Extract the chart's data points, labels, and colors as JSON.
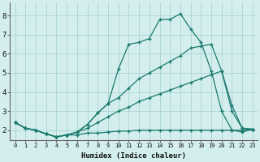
{
  "xlabel": "Humidex (Indice chaleur)",
  "bg_color": "#d4eeee",
  "grid_color": "#aad4d4",
  "line_color": "#1a7a6e",
  "xlim": [
    -0.5,
    23.5
  ],
  "ylim": [
    1.5,
    8.7
  ],
  "yticks": [
    2,
    3,
    4,
    5,
    6,
    7,
    8
  ],
  "xticks": [
    0,
    1,
    2,
    3,
    4,
    5,
    6,
    7,
    8,
    9,
    10,
    11,
    12,
    13,
    14,
    15,
    16,
    17,
    18,
    19,
    20,
    21,
    22,
    23
  ],
  "line1_x": [
    0,
    1,
    2,
    3,
    4,
    5,
    6,
    7,
    8,
    9,
    10,
    11,
    12,
    13,
    14,
    15,
    16,
    17,
    18,
    19,
    20,
    21,
    22,
    23
  ],
  "line1_y": [
    2.4,
    2.1,
    2.0,
    1.8,
    1.65,
    1.75,
    1.75,
    1.85,
    1.85,
    1.9,
    1.95,
    1.95,
    2.0,
    2.0,
    2.0,
    2.0,
    2.0,
    2.0,
    2.0,
    2.0,
    2.0,
    2.0,
    2.0,
    2.05
  ],
  "line2_x": [
    0,
    1,
    2,
    3,
    4,
    5,
    6,
    7,
    8,
    9,
    10,
    11,
    12,
    13,
    14,
    15,
    16,
    17,
    18,
    19,
    20,
    21,
    22,
    23
  ],
  "line2_y": [
    2.4,
    2.1,
    2.0,
    1.8,
    1.65,
    1.75,
    1.9,
    2.1,
    2.4,
    2.7,
    3.0,
    3.2,
    3.5,
    3.7,
    3.9,
    4.1,
    4.3,
    4.5,
    4.7,
    4.9,
    5.1,
    3.3,
    2.1,
    2.05
  ],
  "line3_x": [
    0,
    1,
    2,
    3,
    4,
    5,
    6,
    7,
    8,
    9,
    10,
    11,
    12,
    13,
    14,
    15,
    16,
    17,
    18,
    19,
    20,
    21,
    22,
    23
  ],
  "line3_y": [
    2.4,
    2.1,
    2.0,
    1.8,
    1.65,
    1.75,
    1.9,
    2.3,
    2.9,
    3.4,
    3.7,
    4.2,
    4.7,
    5.0,
    5.3,
    5.6,
    5.9,
    6.3,
    6.4,
    6.5,
    5.1,
    3.0,
    2.1,
    2.05
  ],
  "line4_x": [
    0,
    1,
    2,
    3,
    4,
    5,
    6,
    7,
    8,
    9,
    10,
    11,
    12,
    13,
    14,
    15,
    16,
    17,
    18,
    19,
    20,
    21,
    22,
    23
  ],
  "line4_y": [
    2.4,
    2.1,
    2.0,
    1.8,
    1.65,
    1.75,
    1.9,
    2.3,
    2.9,
    3.4,
    5.2,
    6.5,
    6.6,
    6.8,
    7.8,
    7.8,
    8.1,
    7.3,
    6.6,
    5.1,
    3.0,
    2.0,
    1.9,
    2.05
  ],
  "marker_size": 2.5,
  "linewidth": 0.9
}
